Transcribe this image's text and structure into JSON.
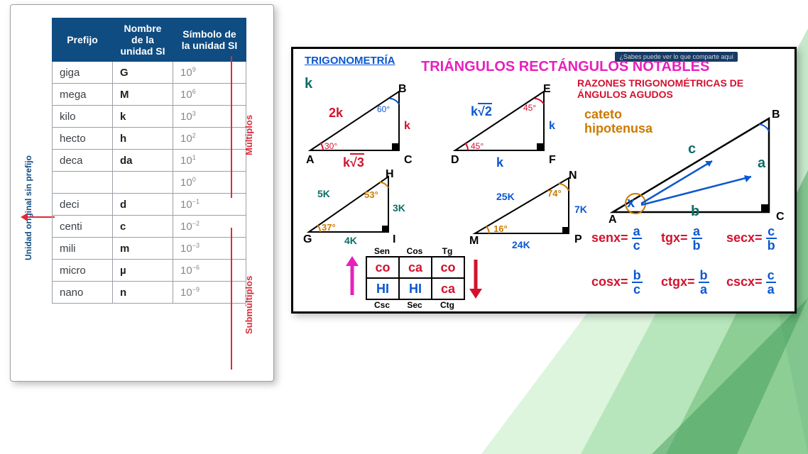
{
  "siTable": {
    "headers": [
      "Prefijo",
      "Nombre de la unidad SI",
      "Símbolo de la unidad SI"
    ],
    "rows": [
      {
        "p": "giga",
        "s": "G",
        "v": "10",
        "e": "9"
      },
      {
        "p": "mega",
        "s": "M",
        "v": "10",
        "e": "6"
      },
      {
        "p": "kilo",
        "s": "k",
        "v": "10",
        "e": "3"
      },
      {
        "p": "hecto",
        "s": "h",
        "v": "10",
        "e": "2"
      },
      {
        "p": "deca",
        "s": "da",
        "v": "10",
        "e": "1"
      },
      {
        "p": "",
        "s": "",
        "v": "10",
        "e": "0"
      },
      {
        "p": "deci",
        "s": "d",
        "v": "10",
        "e": "−1"
      },
      {
        "p": "centi",
        "s": "c",
        "v": "10",
        "e": "−2"
      },
      {
        "p": "mili",
        "s": "m",
        "v": "10",
        "e": "−3"
      },
      {
        "p": "micro",
        "s": "µ",
        "v": "10",
        "e": "−6"
      },
      {
        "p": "nano",
        "s": "n",
        "v": "10",
        "e": "−9"
      }
    ],
    "sideLabel": "Unidad original sin prefijo",
    "multLabel": "Múltiplos",
    "submLabel": "Submúltiplos"
  },
  "trig": {
    "titleSmall": "TRIGONOMETRÍA",
    "titleMain": "TRIÁNGULOS RECTÁNGULOS NOTABLES",
    "ratiosTitle": "RAZONES TRIGONOMÉTRICAS DE ÁNGULOS AGUDOS",
    "cateto": "cateto",
    "hipotenusa": "hipotenusa",
    "blueBar": "¿Sabes puede ver lo que comparte aquí",
    "k": "k",
    "tri3060": {
      "A": "A",
      "B": "B",
      "C": "C",
      "a30": "30°",
      "a60": "60°",
      "hyp": "2k",
      "opp": "k",
      "adj": "k√3"
    },
    "tri4545": {
      "D": "D",
      "E": "E",
      "F": "F",
      "a45a": "45°",
      "a45b": "45°",
      "hyp": "k√2",
      "opp": "k",
      "adj": "k"
    },
    "tri3753": {
      "G": "G",
      "H": "H",
      "I": "I",
      "a37": "37°",
      "a53": "53°",
      "hyp": "5K",
      "opp": "3K",
      "adj": "4K"
    },
    "tri1674": {
      "M": "M",
      "N": "N",
      "P": "P",
      "a16": "16°",
      "a74": "74°",
      "hyp": "25K",
      "opp": "7K",
      "adj": "24K"
    },
    "triX": {
      "A": "A",
      "B": "B",
      "C": "C",
      "x": "x",
      "a": "a",
      "b": "b",
      "c": "c"
    },
    "mnem": {
      "top": [
        "Sen",
        "Cos",
        "Tg"
      ],
      "bot": [
        "Csc",
        "Sec",
        "Ctg"
      ],
      "r1": [
        "co",
        "ca",
        "co"
      ],
      "r2": [
        "HI",
        "HI",
        "ca"
      ]
    },
    "formulas": {
      "senx": {
        "lbl": "senx=",
        "n": "a",
        "d": "c"
      },
      "tgx": {
        "lbl": "tgx=",
        "n": "a",
        "d": "b"
      },
      "secx": {
        "lbl": "secx=",
        "n": "c",
        "d": "b"
      },
      "cosx": {
        "lbl": "cosx=",
        "n": "b",
        "d": "c"
      },
      "ctgx": {
        "lbl": "ctgx=",
        "n": "b",
        "d": "a"
      },
      "cscx": {
        "lbl": "cscx=",
        "n": "c",
        "d": "a"
      }
    }
  },
  "colors": {
    "greenDark": "#1f8a3b",
    "greenMid": "#3fb24f",
    "greenLight": "#8fdc8f",
    "magenta": "#e81fbe",
    "red": "#d3122e",
    "blue": "#0b57d0",
    "orange": "#cc7a00",
    "navy": "#0f4c81",
    "darkcyan": "#0b6e66"
  }
}
